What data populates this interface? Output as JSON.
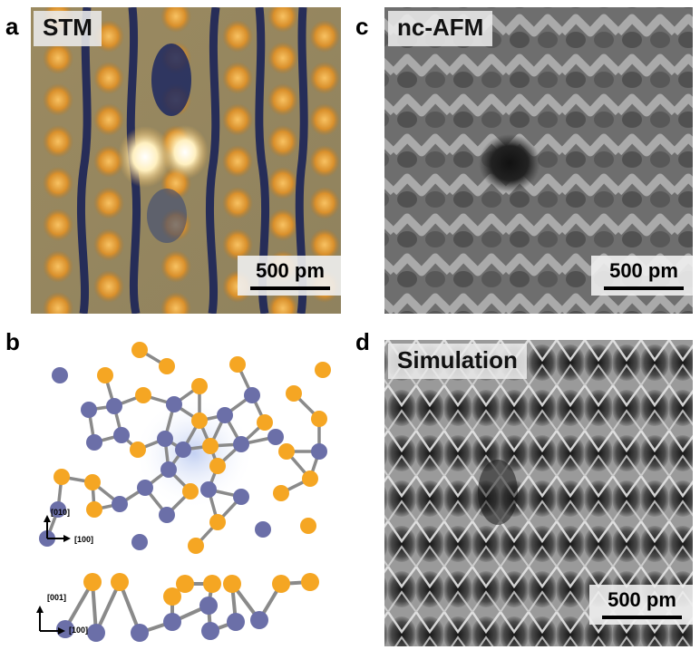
{
  "panels": {
    "a": {
      "letter": "a",
      "title": "STM",
      "scale": "500 pm"
    },
    "b": {
      "letter": "b",
      "top_axes": {
        "vertical": "[010]",
        "horizontal": "[100]"
      },
      "side_axes": {
        "vertical": "[001]",
        "horizontal": "[100]"
      }
    },
    "c": {
      "letter": "c",
      "title": "nc-AFM",
      "scale": "500 pm"
    },
    "d": {
      "letter": "d",
      "title": "Simulation",
      "scale": "500 pm"
    }
  },
  "colors": {
    "atom_orange": "#f5a623",
    "atom_blue": "#6b6fa8",
    "bond": "#8a8a8a"
  }
}
